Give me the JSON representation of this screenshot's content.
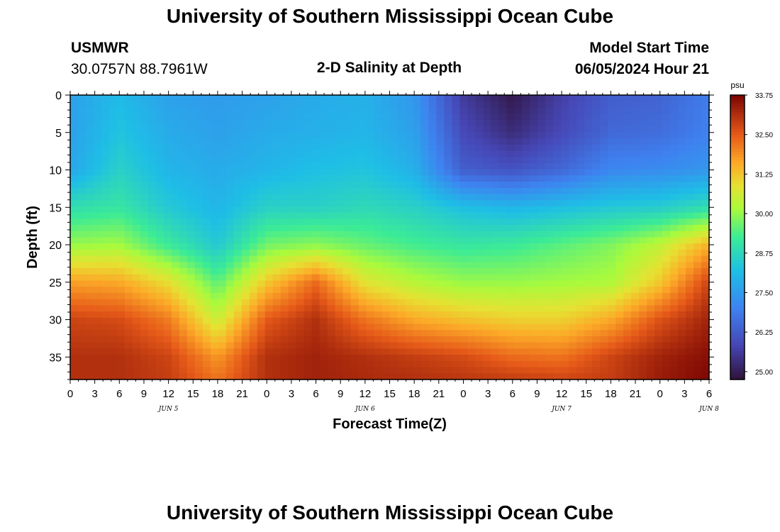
{
  "header": {
    "title": "University of Southern Mississippi Ocean Cube",
    "station_id": "USMWR",
    "coordinates": "30.0757N  88.7961W",
    "plot_title": "2-D Salinity at Depth",
    "model_start_label": "Model Start Time",
    "model_start_value": "06/05/2024 Hour 21"
  },
  "footer": {
    "title": "University of Southern Mississippi Ocean Cube"
  },
  "chart_data": {
    "type": "heatmap",
    "xlabel": "Forecast Time(Z)",
    "ylabel": "Depth (ft)",
    "x_ticks": [
      "0",
      "3",
      "6",
      "9",
      "12",
      "15",
      "18",
      "21",
      "0",
      "3",
      "6",
      "9",
      "12",
      "15",
      "18",
      "21",
      "0",
      "3",
      "6",
      "9",
      "12",
      "15",
      "18",
      "21",
      "0",
      "3",
      "6"
    ],
    "date_labels": [
      {
        "label": "JUN 5",
        "at_hour": 12
      },
      {
        "label": "JUN 6",
        "at_hour": 36
      },
      {
        "label": "JUN 7",
        "at_hour": 60
      },
      {
        "label": "JUN 8",
        "at_hour": 78
      }
    ],
    "xlim_hours": [
      0,
      78
    ],
    "ylim": [
      0,
      38
    ],
    "y_ticks": [
      0,
      5,
      10,
      15,
      20,
      25,
      30,
      35
    ],
    "y_inverted": true,
    "colorbar": {
      "unit": "psu",
      "range": [
        24.75,
        33.75
      ],
      "ticks": [
        "33.75",
        "32.50",
        "31.25",
        "30.00",
        "28.75",
        "27.50",
        "26.25",
        "25.00"
      ]
    },
    "depth_samples_ft": [
      0,
      5,
      10,
      15,
      20,
      25,
      30,
      35,
      38
    ],
    "time_samples_hours": [
      0,
      6,
      12,
      18,
      24,
      30,
      36,
      42,
      48,
      54,
      60,
      66,
      72,
      78
    ],
    "salinity_psu": [
      [
        27.6,
        28.1,
        27.6,
        27.5,
        27.6,
        27.8,
        27.9,
        27.4,
        25.6,
        24.9,
        25.7,
        26.3,
        26.4,
        26.9
      ],
      [
        27.6,
        28.3,
        27.8,
        27.6,
        27.8,
        27.9,
        28.0,
        27.6,
        25.9,
        25.3,
        25.9,
        26.5,
        26.6,
        27.0
      ],
      [
        27.7,
        28.6,
        28.0,
        27.8,
        28.0,
        28.2,
        28.3,
        27.9,
        26.3,
        26.1,
        26.5,
        27.1,
        27.2,
        27.4
      ],
      [
        28.9,
        29.1,
        28.4,
        28.0,
        28.6,
        28.6,
        28.8,
        28.6,
        28.2,
        28.0,
        28.2,
        28.4,
        28.5,
        28.9
      ],
      [
        30.0,
        30.1,
        29.2,
        28.4,
        29.7,
        29.9,
        29.6,
        29.3,
        29.1,
        29.2,
        29.5,
        29.8,
        30.4,
        31.5
      ],
      [
        31.7,
        31.6,
        30.9,
        29.5,
        31.2,
        32.3,
        30.8,
        30.3,
        30.0,
        30.0,
        30.1,
        30.2,
        31.2,
        32.8
      ],
      [
        32.8,
        32.7,
        32.1,
        30.5,
        32.5,
        33.1,
        32.2,
        31.6,
        31.3,
        31.1,
        31.1,
        31.6,
        32.6,
        33.3
      ],
      [
        33.1,
        33.1,
        32.8,
        31.8,
        33.1,
        33.3,
        33.1,
        32.9,
        32.7,
        32.3,
        32.2,
        32.8,
        33.3,
        33.6
      ],
      [
        33.1,
        33.1,
        32.9,
        32.2,
        33.1,
        33.3,
        33.2,
        33.1,
        33.0,
        32.9,
        32.8,
        32.9,
        33.4,
        33.7
      ]
    ]
  }
}
